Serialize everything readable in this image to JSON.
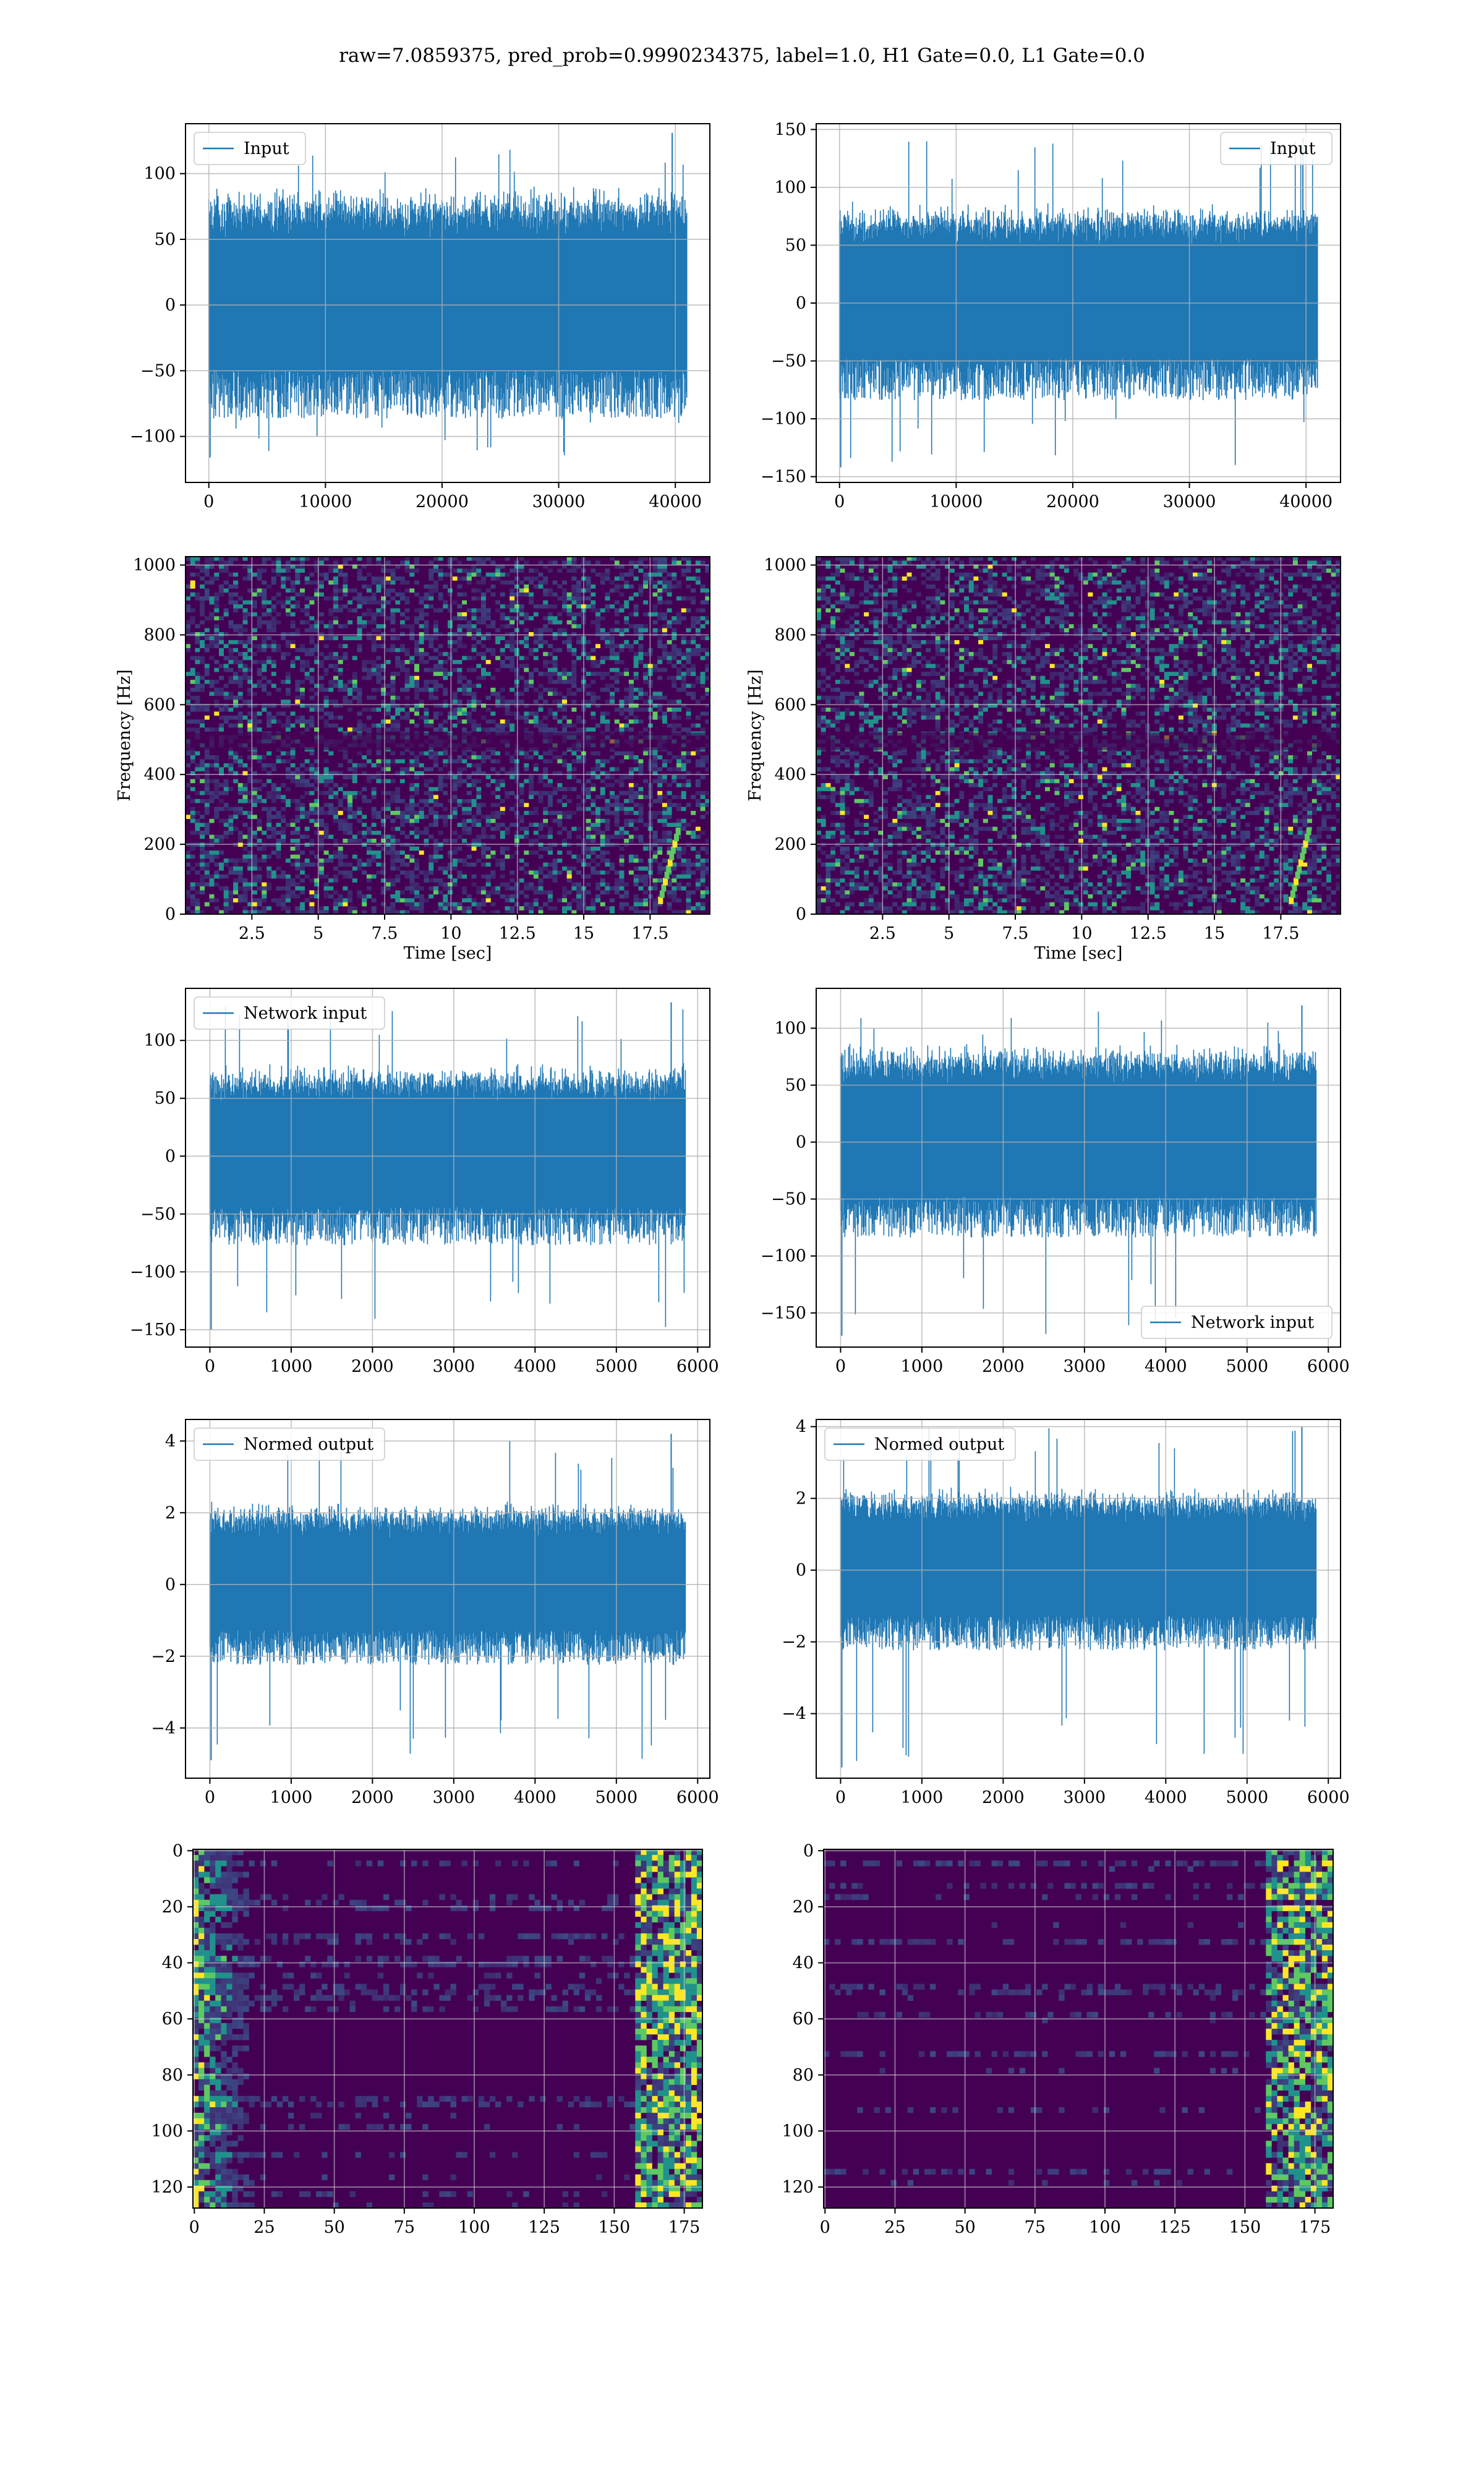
{
  "figure": {
    "title": "raw=7.0859375, pred_prob=0.9990234375, label=1.0, H1 Gate=0.0, L1 Gate=0.0"
  },
  "colors": {
    "line": "#1f77b4",
    "spectrogram_bg": "#440154",
    "grid": "#b0b0b0",
    "viridis": [
      "#440154",
      "#3b528b",
      "#21918c",
      "#5ec962",
      "#fde725"
    ]
  },
  "chart_data": [
    {
      "id": "input-h1",
      "type": "line",
      "series": [
        {
          "name": "Input"
        }
      ],
      "legend": "top-left",
      "xlim": [
        -2000,
        42960
      ],
      "ylim": [
        -135,
        138
      ],
      "xticks": [
        0,
        10000,
        20000,
        30000,
        40000
      ],
      "yticks": [
        100,
        50,
        0,
        -50,
        -100
      ],
      "x_range": [
        0,
        40959
      ],
      "envelope_mean": 62,
      "envelope_peak": 131,
      "envelope_min": -116,
      "grid": true
    },
    {
      "id": "input-l1",
      "type": "line",
      "series": [
        {
          "name": "Input"
        }
      ],
      "legend": "top-right",
      "xlim": [
        -2000,
        42960
      ],
      "ylim": [
        -155,
        155
      ],
      "xticks": [
        0,
        10000,
        20000,
        30000,
        40000
      ],
      "yticks": [
        150,
        100,
        50,
        0,
        -50,
        -100,
        -150
      ],
      "x_range": [
        0,
        40959
      ],
      "envelope_mean": 60,
      "envelope_peak": 143,
      "envelope_min": -142,
      "grid": true
    },
    {
      "id": "spectrogram-h1",
      "type": "heatmap",
      "xlabel": "Time [sec]",
      "ylabel": "Frequency [Hz]",
      "xlim": [
        0,
        19.75
      ],
      "ylim": [
        0,
        1024
      ],
      "xticks": [
        2.5,
        5.0,
        7.5,
        10.0,
        12.5,
        15.0,
        17.5
      ],
      "yticks": [
        0,
        200,
        400,
        600,
        800,
        1000
      ],
      "grid": true
    },
    {
      "id": "spectrogram-l1",
      "type": "heatmap",
      "xlabel": "Time [sec]",
      "ylabel": "Frequency [Hz]",
      "xlim": [
        0,
        19.75
      ],
      "ylim": [
        0,
        1024
      ],
      "xticks": [
        2.5,
        5.0,
        7.5,
        10.0,
        12.5,
        15.0,
        17.5
      ],
      "yticks": [
        0,
        200,
        400,
        600,
        800,
        1000
      ],
      "grid": true
    },
    {
      "id": "network-input-h1",
      "type": "line",
      "series": [
        {
          "name": "Network input"
        }
      ],
      "legend": "top-left",
      "xlim": [
        -300,
        6150
      ],
      "ylim": [
        -165,
        145
      ],
      "xticks": [
        0,
        1000,
        2000,
        3000,
        4000,
        5000,
        6000
      ],
      "yticks": [
        100,
        50,
        0,
        -50,
        -100,
        -150
      ],
      "x_range": [
        0,
        5850
      ],
      "envelope_mean": 55,
      "envelope_peak": 133,
      "envelope_min": -150,
      "grid": true
    },
    {
      "id": "network-input-l1",
      "type": "line",
      "series": [
        {
          "name": "Network input"
        }
      ],
      "legend": "bottom-right",
      "xlim": [
        -300,
        6150
      ],
      "ylim": [
        -180,
        135
      ],
      "xticks": [
        0,
        1000,
        2000,
        3000,
        4000,
        5000,
        6000
      ],
      "yticks": [
        100,
        50,
        0,
        -50,
        -100,
        -150
      ],
      "x_range": [
        0,
        5850
      ],
      "envelope_mean": 60,
      "envelope_peak": 120,
      "envelope_min": -170,
      "grid": true
    },
    {
      "id": "normed-output-h1",
      "type": "line",
      "series": [
        {
          "name": "Normed output"
        }
      ],
      "legend": "top-left",
      "xlim": [
        -300,
        6150
      ],
      "ylim": [
        -5.4,
        4.6
      ],
      "xticks": [
        0,
        1000,
        2000,
        3000,
        4000,
        5000,
        6000
      ],
      "yticks": [
        4,
        2,
        0,
        -2,
        -4
      ],
      "x_range": [
        0,
        5850
      ],
      "envelope_mean": 1.6,
      "envelope_peak": 4.2,
      "envelope_min": -4.9,
      "grid": true
    },
    {
      "id": "normed-output-l1",
      "type": "line",
      "series": [
        {
          "name": "Normed output"
        }
      ],
      "legend": "top-left",
      "xlim": [
        -300,
        6150
      ],
      "ylim": [
        -5.8,
        4.2
      ],
      "xticks": [
        0,
        1000,
        2000,
        3000,
        4000,
        5000,
        6000
      ],
      "yticks": [
        4,
        2,
        0,
        -2,
        -4
      ],
      "x_range": [
        0,
        5850
      ],
      "envelope_mean": 1.6,
      "envelope_peak": 4.0,
      "envelope_min": -5.5,
      "grid": true
    },
    {
      "id": "feature-map-h1",
      "type": "heatmap",
      "xlim": [
        -0.5,
        181.5
      ],
      "ylim": [
        127.5,
        -0.5
      ],
      "xticks": [
        0,
        25,
        50,
        75,
        100,
        125,
        150,
        175
      ],
      "yticks": [
        0,
        20,
        40,
        60,
        80,
        100,
        120
      ],
      "hot_side": "both",
      "grid": true
    },
    {
      "id": "feature-map-l1",
      "type": "heatmap",
      "xlim": [
        -0.5,
        181.5
      ],
      "ylim": [
        127.5,
        -0.5
      ],
      "xticks": [
        0,
        25,
        50,
        75,
        100,
        125,
        150,
        175
      ],
      "yticks": [
        0,
        20,
        40,
        60,
        80,
        100,
        120
      ],
      "hot_side": "right",
      "grid": true
    }
  ]
}
